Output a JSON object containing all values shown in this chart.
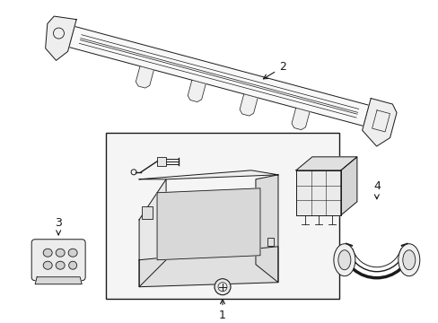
{
  "bg_color": "#ffffff",
  "line_color": "#1a1a1a",
  "fill_light": "#f2f2f2",
  "fill_med": "#e0e0e0",
  "fill_dark": "#cccccc"
}
